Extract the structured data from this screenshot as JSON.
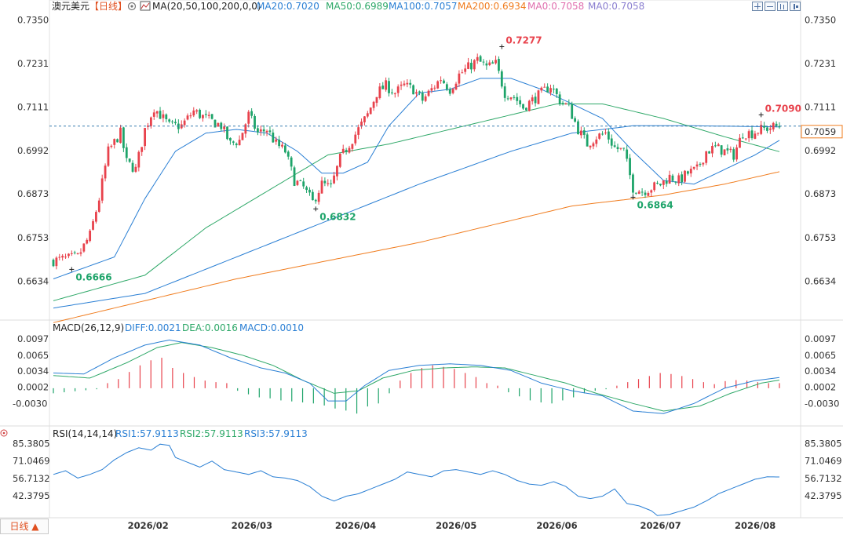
{
  "header": {
    "symbol": "澳元美元",
    "period_tag": "【日线】",
    "settings_icon": "gear-icon",
    "ma_icon": "chart-icon",
    "ma_label": "MA(20,50,100,200,0,0)",
    "ma_values": [
      {
        "text": "MA20:0.7020",
        "color": "#2a7fd4"
      },
      {
        "text": "MA50:0.6989",
        "color": "#2ea868"
      },
      {
        "text": "MA100:0.7057",
        "color": "#2a7fd4"
      },
      {
        "text": "MA200:0.6934",
        "color": "#f07c1e"
      },
      {
        "text": "MA0:0.7058",
        "color": "#e06fae"
      },
      {
        "text": "MA0:0.7058",
        "color": "#8b7fd0"
      }
    ]
  },
  "toolbar_icons": [
    "zoom-in-icon",
    "zoom-out-icon",
    "bar-icon",
    "next-icon"
  ],
  "macd_header": {
    "label": "MACD(26,12,9)",
    "diff": "DIFF:0.0021",
    "dea": "DEA:0.0016",
    "macd": "MACD:0.0010"
  },
  "rsi_header": {
    "icon": "target-icon",
    "label": "RSI(14,14,14)",
    "rsi1": "RSI1:57.9113",
    "rsi2": "RSI2:57.9113",
    "rsi3": "RSI3:57.9113"
  },
  "period_button": "日线 ▲",
  "current_price": "0.7059",
  "colors": {
    "up": "#e8424c",
    "down": "#1ea46a",
    "ma20": "#2a7fd4",
    "ma50": "#2ea868",
    "ma100": "#2a7fd4",
    "ma200": "#f07c1e",
    "dea": "#2ea868",
    "diff": "#2a7fd4",
    "rsi": "#2a7fd4",
    "price_line": "#3a7fb0"
  },
  "chart_data": [
    {
      "type": "candlestick",
      "title": "澳元美元【日线】",
      "x_ticks": [
        "2026/02",
        "2026/03",
        "2026/04",
        "2026/05",
        "2026/06",
        "2026/07",
        "2026/08"
      ],
      "y_ticks": [
        "0.7350",
        "0.7231",
        "0.7111",
        "0.6992",
        "0.6873",
        "0.6753",
        "0.6634"
      ],
      "ylim": [
        0.6555,
        0.7362
      ],
      "annotations": [
        {
          "text": "0.7277",
          "value": 0.7277,
          "kind": "high"
        },
        {
          "text": "0.6666",
          "value": 0.6666,
          "kind": "low"
        },
        {
          "text": "0.6832",
          "value": 0.6832,
          "kind": "low"
        },
        {
          "text": "0.6864",
          "value": 0.6864,
          "kind": "low"
        },
        {
          "text": "0.7090",
          "value": 0.709,
          "kind": "high"
        }
      ],
      "current_price": 0.7059,
      "close_path": [
        [
          0,
          0.669
        ],
        [
          8,
          0.67
        ],
        [
          12,
          0.676
        ],
        [
          15,
          0.686
        ],
        [
          18,
          0.699
        ],
        [
          22,
          0.704
        ],
        [
          24,
          0.696
        ],
        [
          27,
          0.694
        ],
        [
          30,
          0.705
        ],
        [
          33,
          0.711
        ],
        [
          38,
          0.706
        ],
        [
          42,
          0.706
        ],
        [
          46,
          0.71
        ],
        [
          50,
          0.708
        ],
        [
          55,
          0.706
        ],
        [
          58,
          0.701
        ],
        [
          61,
          0.702
        ],
        [
          64,
          0.709
        ],
        [
          67,
          0.704
        ],
        [
          70,
          0.705
        ],
        [
          73,
          0.701
        ],
        [
          76,
          0.699
        ],
        [
          79,
          0.691
        ],
        [
          82,
          0.689
        ],
        [
          85,
          0.685
        ],
        [
          88,
          0.69
        ],
        [
          91,
          0.689
        ],
        [
          94,
          0.697
        ],
        [
          97,
          0.701
        ],
        [
          100,
          0.705
        ],
        [
          103,
          0.709
        ],
        [
          106,
          0.715
        ],
        [
          109,
          0.717
        ],
        [
          112,
          0.715
        ],
        [
          115,
          0.717
        ],
        [
          118,
          0.716
        ],
        [
          121,
          0.713
        ],
        [
          124,
          0.716
        ],
        [
          127,
          0.719
        ],
        [
          130,
          0.716
        ],
        [
          133,
          0.72
        ],
        [
          136,
          0.722
        ],
        [
          139,
          0.724
        ],
        [
          142,
          0.722
        ],
        [
          145,
          0.723
        ],
        [
          148,
          0.715
        ],
        [
          151,
          0.714
        ],
        [
          154,
          0.711
        ],
        [
          157,
          0.713
        ],
        [
          160,
          0.715
        ],
        [
          163,
          0.717
        ],
        [
          166,
          0.713
        ],
        [
          169,
          0.711
        ],
        [
          172,
          0.705
        ],
        [
          175,
          0.701
        ],
        [
          178,
          0.703
        ],
        [
          181,
          0.704
        ],
        [
          184,
          0.7
        ],
        [
          187,
          0.699
        ],
        [
          190,
          0.689
        ],
        [
          193,
          0.688
        ],
        [
          196,
          0.689
        ],
        [
          199,
          0.69
        ],
        [
          202,
          0.692
        ],
        [
          205,
          0.691
        ],
        [
          208,
          0.693
        ],
        [
          211,
          0.694
        ],
        [
          214,
          0.699
        ],
        [
          217,
          0.7
        ],
        [
          220,
          0.699
        ],
        [
          223,
          0.698
        ],
        [
          226,
          0.704
        ],
        [
          229,
          0.704
        ],
        [
          232,
          0.705
        ],
        [
          235,
          0.7055
        ],
        [
          238,
          0.7059
        ]
      ],
      "ma20_path": [
        [
          0,
          0.664
        ],
        [
          20,
          0.67
        ],
        [
          30,
          0.686
        ],
        [
          40,
          0.699
        ],
        [
          50,
          0.704
        ],
        [
          60,
          0.705
        ],
        [
          70,
          0.704
        ],
        [
          80,
          0.699
        ],
        [
          88,
          0.693
        ],
        [
          95,
          0.693
        ],
        [
          103,
          0.696
        ],
        [
          110,
          0.706
        ],
        [
          120,
          0.715
        ],
        [
          130,
          0.716
        ],
        [
          140,
          0.719
        ],
        [
          150,
          0.719
        ],
        [
          160,
          0.716
        ],
        [
          170,
          0.712
        ],
        [
          180,
          0.708
        ],
        [
          190,
          0.699
        ],
        [
          200,
          0.691
        ],
        [
          210,
          0.69
        ],
        [
          220,
          0.694
        ],
        [
          230,
          0.698
        ],
        [
          238,
          0.702
        ]
      ],
      "ma50_path": [
        [
          0,
          0.658
        ],
        [
          30,
          0.665
        ],
        [
          50,
          0.678
        ],
        [
          70,
          0.688
        ],
        [
          90,
          0.698
        ],
        [
          110,
          0.701
        ],
        [
          130,
          0.705
        ],
        [
          150,
          0.709
        ],
        [
          165,
          0.712
        ],
        [
          180,
          0.712
        ],
        [
          200,
          0.708
        ],
        [
          220,
          0.703
        ],
        [
          238,
          0.6989
        ]
      ],
      "ma100_path": [
        [
          0,
          0.656
        ],
        [
          30,
          0.66
        ],
        [
          60,
          0.67
        ],
        [
          90,
          0.68
        ],
        [
          120,
          0.69
        ],
        [
          150,
          0.699
        ],
        [
          170,
          0.704
        ],
        [
          190,
          0.706
        ],
        [
          210,
          0.706
        ],
        [
          238,
          0.7057
        ]
      ],
      "ma200_path": [
        [
          0,
          0.652
        ],
        [
          60,
          0.664
        ],
        [
          120,
          0.674
        ],
        [
          170,
          0.684
        ],
        [
          200,
          0.687
        ],
        [
          220,
          0.69
        ],
        [
          238,
          0.6934
        ]
      ]
    },
    {
      "type": "bar",
      "title": "MACD(26,12,9)",
      "y_ticks": [
        "0.0097",
        "0.0065",
        "0.0034",
        "0.0002",
        "-0.0030"
      ],
      "ylim": [
        -0.0062,
        0.0108
      ],
      "series": [
        {
          "name": "DIFF",
          "path": [
            [
              0,
              0.003
            ],
            [
              10,
              0.0028
            ],
            [
              20,
              0.006
            ],
            [
              30,
              0.0085
            ],
            [
              38,
              0.0095
            ],
            [
              48,
              0.0085
            ],
            [
              58,
              0.006
            ],
            [
              68,
              0.004
            ],
            [
              76,
              0.003
            ],
            [
              84,
              0.001
            ],
            [
              90,
              -0.0025
            ],
            [
              96,
              -0.0025
            ],
            [
              102,
              0.0005
            ],
            [
              110,
              0.0035
            ],
            [
              120,
              0.0045
            ],
            [
              130,
              0.0048
            ],
            [
              140,
              0.0045
            ],
            [
              150,
              0.0035
            ],
            [
              160,
              0.001
            ],
            [
              170,
              -0.0005
            ],
            [
              180,
              -0.0015
            ],
            [
              190,
              -0.0045
            ],
            [
              200,
              -0.005
            ],
            [
              210,
              -0.003
            ],
            [
              220,
              0.0
            ],
            [
              230,
              0.0015
            ],
            [
              238,
              0.0021
            ]
          ]
        },
        {
          "name": "DEA",
          "path": [
            [
              0,
              0.0025
            ],
            [
              12,
              0.002
            ],
            [
              24,
              0.005
            ],
            [
              34,
              0.008
            ],
            [
              42,
              0.009
            ],
            [
              52,
              0.008
            ],
            [
              62,
              0.0065
            ],
            [
              72,
              0.0045
            ],
            [
              82,
              0.0015
            ],
            [
              92,
              -0.001
            ],
            [
              100,
              -0.0005
            ],
            [
              108,
              0.002
            ],
            [
              118,
              0.0035
            ],
            [
              128,
              0.004
            ],
            [
              138,
              0.0042
            ],
            [
              148,
              0.004
            ],
            [
              158,
              0.0025
            ],
            [
              168,
              0.001
            ],
            [
              178,
              -0.001
            ],
            [
              190,
              -0.003
            ],
            [
              200,
              -0.0045
            ],
            [
              212,
              -0.0035
            ],
            [
              222,
              -0.001
            ],
            [
              232,
              0.001
            ],
            [
              238,
              0.0016
            ]
          ]
        },
        {
          "name": "MACD",
          "values": [
            -0.001,
            -0.0008,
            -0.0006,
            -0.0004,
            -0.0002,
            0.001,
            0.0018,
            0.0032,
            0.0045,
            0.0055,
            0.006,
            0.004,
            0.003,
            0.0022,
            0.0015,
            0.0012,
            0.001,
            -0.0005,
            -0.0012,
            -0.0018,
            -0.002,
            -0.0024,
            -0.0026,
            -0.0028,
            -0.003,
            -0.0034,
            -0.004,
            -0.0044,
            -0.005,
            -0.0036,
            -0.003,
            -0.001,
            0.0015,
            0.003,
            0.004,
            0.0045,
            0.0042,
            0.0038,
            0.003,
            0.0022,
            0.001,
            0.0005,
            -0.0008,
            -0.0016,
            -0.0024,
            -0.0028,
            -0.003,
            -0.0024,
            -0.0018,
            -0.001,
            -0.0005,
            -0.0002,
            0.0005,
            0.0012,
            0.0018,
            0.0024,
            0.003,
            0.0028,
            0.0024,
            0.0018,
            0.0012,
            0.0008,
            0.0014,
            0.0016,
            0.0015,
            0.0012,
            0.001,
            0.001
          ]
        }
      ]
    },
    {
      "type": "line",
      "title": "RSI(14,14,14)",
      "y_ticks": [
        "85.3805",
        "71.0469",
        "56.7132",
        "42.3795"
      ],
      "ylim": [
        25.5,
        89.0
      ],
      "series": [
        {
          "name": "RSI1",
          "path": [
            [
              0,
              60
            ],
            [
              4,
              63
            ],
            [
              8,
              57
            ],
            [
              12,
              60
            ],
            [
              16,
              64
            ],
            [
              20,
              72
            ],
            [
              24,
              78
            ],
            [
              28,
              82
            ],
            [
              32,
              80
            ],
            [
              35,
              85
            ],
            [
              38,
              84
            ],
            [
              40,
              74
            ],
            [
              44,
              70
            ],
            [
              48,
              66
            ],
            [
              52,
              71
            ],
            [
              56,
              64
            ],
            [
              60,
              62
            ],
            [
              64,
              60
            ],
            [
              68,
              63
            ],
            [
              72,
              58
            ],
            [
              76,
              57
            ],
            [
              80,
              55
            ],
            [
              84,
              50
            ],
            [
              86,
              46
            ],
            [
              88,
              42
            ],
            [
              90,
              40
            ],
            [
              92,
              38
            ],
            [
              96,
              42
            ],
            [
              100,
              44
            ],
            [
              104,
              48
            ],
            [
              108,
              52
            ],
            [
              112,
              56
            ],
            [
              116,
              62
            ],
            [
              120,
              60
            ],
            [
              124,
              58
            ],
            [
              128,
              63
            ],
            [
              132,
              64
            ],
            [
              136,
              62
            ],
            [
              140,
              60
            ],
            [
              144,
              63
            ],
            [
              148,
              60
            ],
            [
              152,
              55
            ],
            [
              156,
              52
            ],
            [
              160,
              51
            ],
            [
              164,
              54
            ],
            [
              168,
              50
            ],
            [
              172,
              42
            ],
            [
              176,
              40
            ],
            [
              180,
              42
            ],
            [
              184,
              48
            ],
            [
              188,
              36
            ],
            [
              192,
              34
            ],
            [
              196,
              30
            ],
            [
              198,
              26
            ],
            [
              202,
              27
            ],
            [
              206,
              30
            ],
            [
              210,
              33
            ],
            [
              214,
              38
            ],
            [
              218,
              44
            ],
            [
              222,
              48
            ],
            [
              226,
              52
            ],
            [
              230,
              56
            ],
            [
              234,
              58
            ],
            [
              238,
              57.9
            ]
          ]
        }
      ]
    }
  ]
}
